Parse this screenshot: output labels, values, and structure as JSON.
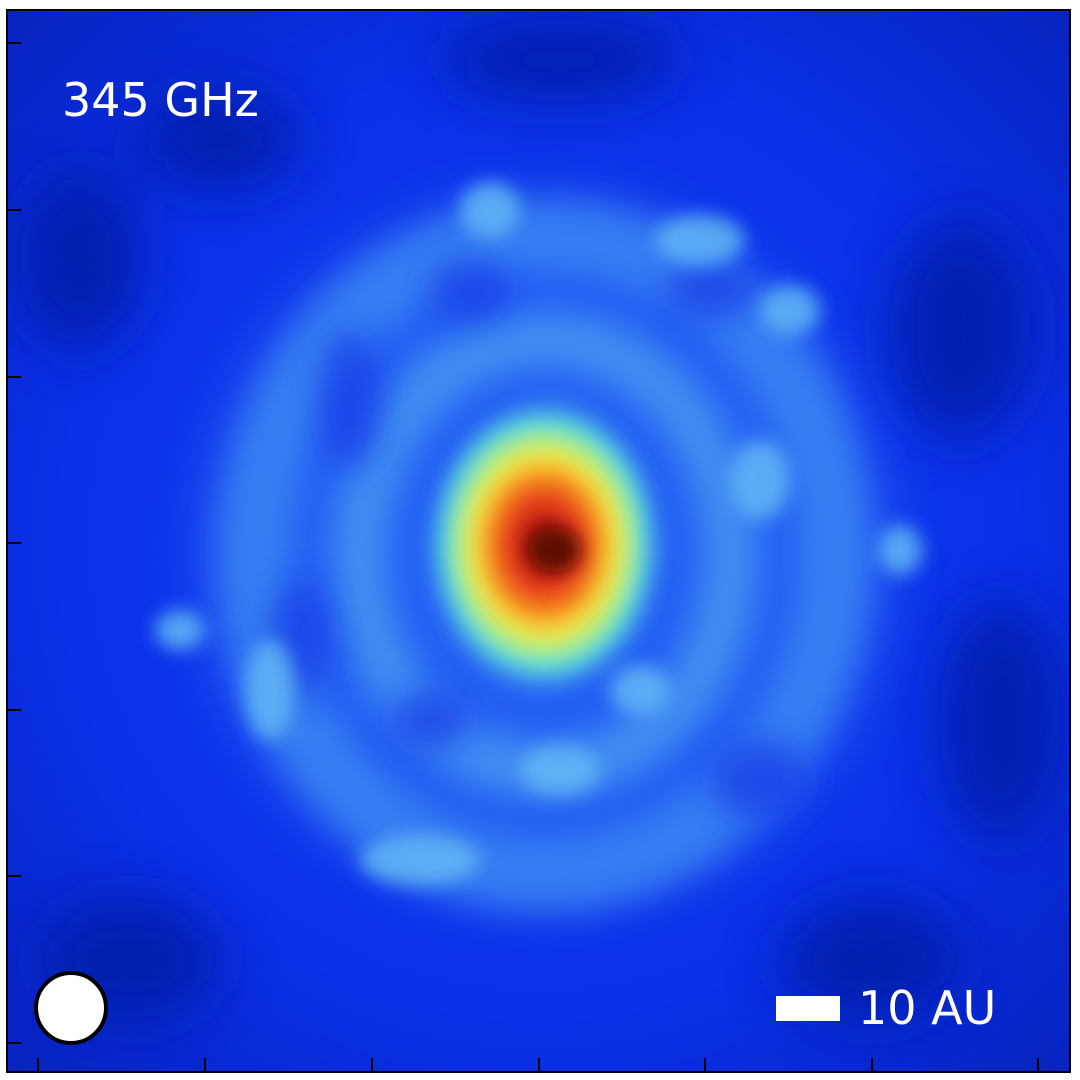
{
  "frequency_label": "345 GHz",
  "scale_bar_label": "10 AU",
  "colors": {
    "background": "#0a2ee6",
    "frame": "#000000",
    "beam_fill": "#ffffff",
    "peak": "#7a0a06"
  },
  "axes": {
    "x_tick_count": 7,
    "y_tick_count": 7,
    "tick_labels": "none"
  }
}
